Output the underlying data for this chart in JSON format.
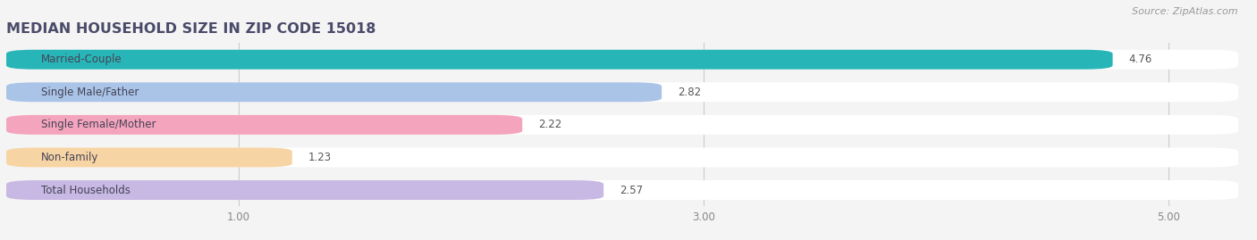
{
  "title": "MEDIAN HOUSEHOLD SIZE IN ZIP CODE 15018",
  "source": "Source: ZipAtlas.com",
  "categories": [
    "Married-Couple",
    "Single Male/Father",
    "Single Female/Mother",
    "Non-family",
    "Total Households"
  ],
  "values": [
    4.76,
    2.82,
    2.22,
    1.23,
    2.57
  ],
  "bar_colors": [
    "#28b5b8",
    "#aac4e8",
    "#f4a4bc",
    "#f7d4a4",
    "#c8b8e4"
  ],
  "xlim": [
    0,
    5.3
  ],
  "xticks": [
    1.0,
    3.0,
    5.0
  ],
  "xtick_labels": [
    "1.00",
    "3.00",
    "5.00"
  ],
  "background_color": "#f4f4f4",
  "bar_background_color": "#ffffff",
  "title_color": "#4a4a6a",
  "title_fontsize": 11.5,
  "label_fontsize": 8.5,
  "value_fontsize": 8.5,
  "source_fontsize": 8,
  "source_color": "#999999",
  "label_color": "#444455",
  "value_color": "#555555"
}
